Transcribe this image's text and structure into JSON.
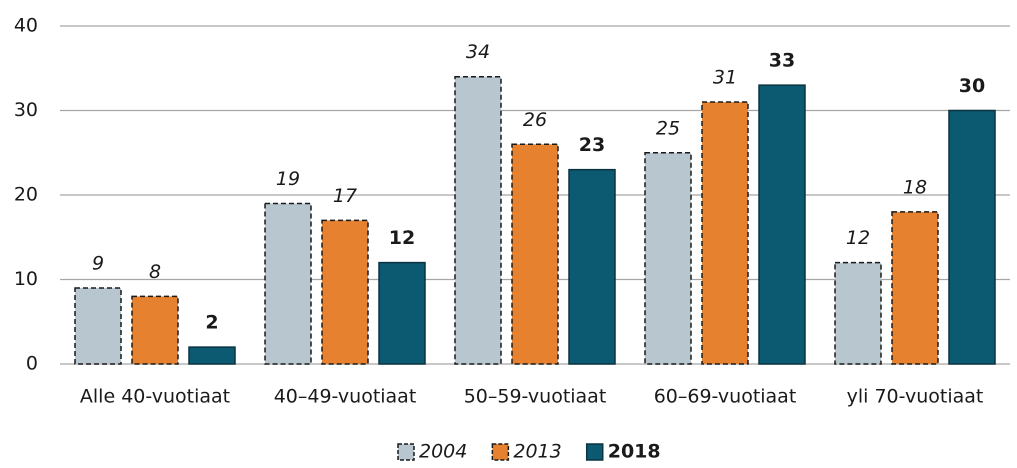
{
  "chart_data": {
    "type": "bar",
    "categories": [
      "Alle 40-vuotiaat",
      "40–49-vuotiaat",
      "50–59-vuotiaat",
      "60–69-vuotiaat",
      "yli 70-vuotiaat"
    ],
    "series": [
      {
        "name": "2004",
        "color": "#b8c7cf",
        "border": "dashed",
        "font_style": "italic",
        "values": [
          9,
          19,
          34,
          25,
          12
        ]
      },
      {
        "name": "2013",
        "color": "#e6812f",
        "border": "dashed",
        "font_style": "italic",
        "values": [
          8,
          17,
          26,
          31,
          18
        ]
      },
      {
        "name": "2018",
        "color": "#0c5a72",
        "border": "solid",
        "font_style": "bold",
        "values": [
          2,
          12,
          23,
          33,
          30
        ]
      }
    ],
    "ylim": [
      0,
      40
    ],
    "yticks": [
      0,
      10,
      20,
      30,
      40
    ],
    "grid": true,
    "legend": "bottom"
  }
}
